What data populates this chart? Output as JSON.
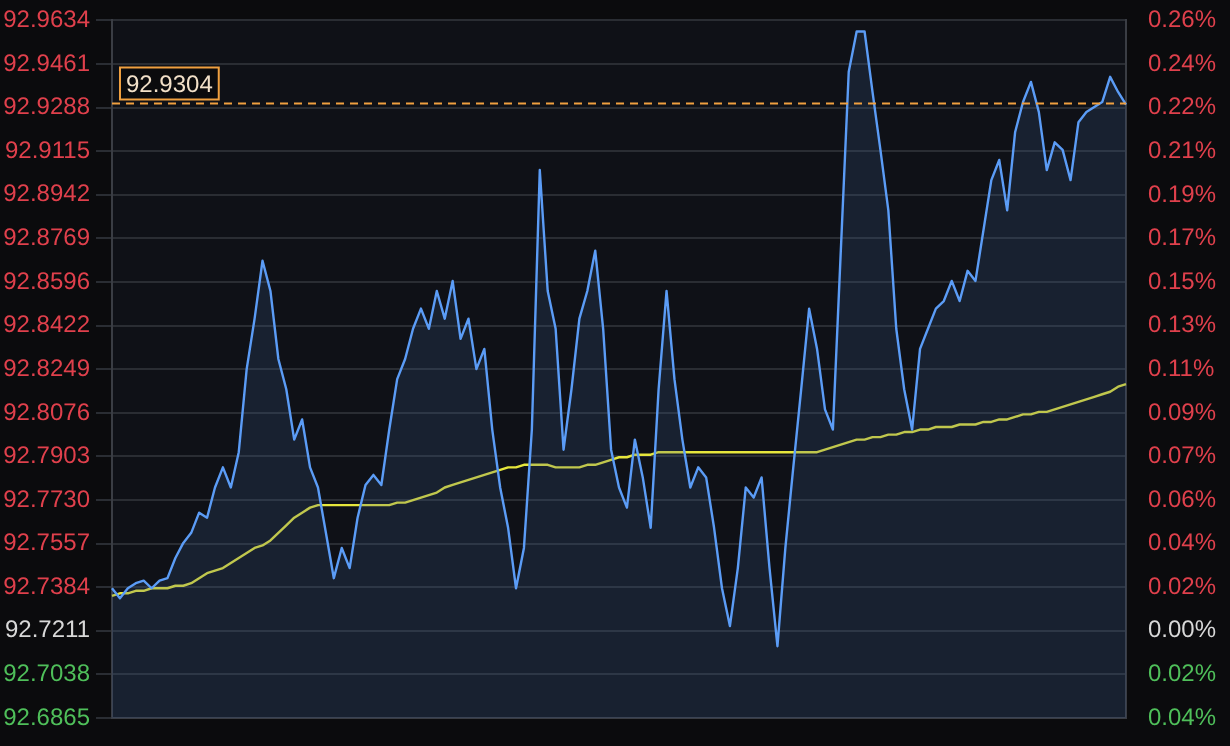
{
  "chart_data": {
    "type": "area",
    "categories": [
      null,
      null,
      null,
      null,
      null,
      null,
      null,
      null,
      null,
      null,
      null,
      null,
      null,
      null,
      null,
      null,
      null,
      null,
      null,
      null,
      null,
      null,
      null,
      null,
      null,
      null,
      null,
      null,
      null,
      null,
      null,
      null,
      null,
      null,
      null,
      null,
      null,
      null,
      null,
      null,
      null,
      null,
      null,
      null,
      null,
      null,
      null,
      null,
      null,
      null,
      null,
      null,
      null,
      null,
      null,
      null,
      null,
      null,
      null,
      null,
      null,
      null,
      null,
      null,
      null,
      null,
      null,
      null,
      null,
      null,
      null,
      null,
      null,
      null,
      null,
      null,
      null,
      null,
      null,
      null,
      null,
      null,
      null,
      null,
      null,
      null,
      null,
      null,
      null,
      null,
      null,
      null,
      null,
      null,
      null,
      null,
      null,
      null,
      null,
      null,
      null,
      null,
      null,
      null,
      null,
      null,
      null,
      null,
      null,
      null,
      null,
      null,
      null,
      null,
      null,
      null,
      null,
      null,
      null,
      null,
      null,
      null,
      null,
      null,
      null,
      null,
      null,
      null,
      null
    ],
    "series": [
      {
        "color": "#5b9cf6",
        "values": [
          92.738,
          92.734,
          92.738,
          92.74,
          92.741,
          92.738,
          92.741,
          92.742,
          92.75,
          92.756,
          92.76,
          92.768,
          92.766,
          92.778,
          92.786,
          92.778,
          92.792,
          92.825,
          92.845,
          92.868,
          92.856,
          92.829,
          92.817,
          92.797,
          92.805,
          92.786,
          92.778,
          92.76,
          92.742,
          92.754,
          92.746,
          92.766,
          92.779,
          92.783,
          92.779,
          92.801,
          92.821,
          92.829,
          92.841,
          92.849,
          92.841,
          92.856,
          92.845,
          92.86,
          92.837,
          92.845,
          92.825,
          92.833,
          92.801,
          92.778,
          92.762,
          92.738,
          92.754,
          92.801,
          92.904,
          92.856,
          92.841,
          92.793,
          92.817,
          92.845,
          92.856,
          92.872,
          92.841,
          92.793,
          92.778,
          92.77,
          92.797,
          92.782,
          92.762,
          92.817,
          92.856,
          92.821,
          92.797,
          92.778,
          92.786,
          92.782,
          92.762,
          92.738,
          92.723,
          92.746,
          92.778,
          92.774,
          92.782,
          92.746,
          92.715,
          92.754,
          92.786,
          92.817,
          92.849,
          92.833,
          92.809,
          92.801,
          92.872,
          92.943,
          92.959,
          92.959,
          92.935,
          92.912,
          92.888,
          92.841,
          92.817,
          92.801,
          92.833,
          92.841,
          92.849,
          92.852,
          92.86,
          92.852,
          92.864,
          92.86,
          92.88,
          92.9,
          92.908,
          92.888,
          92.919,
          92.931,
          92.939,
          92.927,
          92.904,
          92.915,
          92.912,
          92.9,
          92.923,
          92.927,
          92.929,
          92.931,
          92.941,
          92.935,
          92.93
        ]
      },
      {
        "type": "line",
        "color": "#e6e63c",
        "values": [
          92.735,
          92.736,
          92.736,
          92.737,
          92.737,
          92.738,
          92.738,
          92.738,
          92.739,
          92.739,
          92.74,
          92.742,
          92.744,
          92.745,
          92.746,
          92.748,
          92.75,
          92.752,
          92.754,
          92.755,
          92.757,
          92.76,
          92.763,
          92.766,
          92.768,
          92.77,
          92.771,
          92.771,
          92.771,
          92.771,
          92.771,
          92.771,
          92.771,
          92.771,
          92.771,
          92.771,
          92.772,
          92.772,
          92.773,
          92.774,
          92.775,
          92.776,
          92.778,
          92.779,
          92.78,
          92.781,
          92.782,
          92.783,
          92.784,
          92.785,
          92.786,
          92.786,
          92.787,
          92.787,
          92.787,
          92.787,
          92.786,
          92.786,
          92.786,
          92.786,
          92.787,
          92.787,
          92.788,
          92.789,
          92.79,
          92.79,
          92.791,
          92.791,
          92.791,
          92.792,
          92.792,
          92.792,
          92.792,
          92.792,
          92.792,
          92.792,
          92.792,
          92.792,
          92.792,
          92.792,
          92.792,
          92.792,
          92.792,
          92.792,
          92.792,
          92.792,
          92.792,
          92.792,
          92.792,
          92.792,
          92.793,
          92.794,
          92.795,
          92.796,
          92.797,
          92.797,
          92.798,
          92.798,
          92.799,
          92.799,
          92.8,
          92.8,
          92.801,
          92.801,
          92.802,
          92.802,
          92.802,
          92.803,
          92.803,
          92.803,
          92.804,
          92.804,
          92.805,
          92.805,
          92.806,
          92.807,
          92.807,
          92.808,
          92.808,
          92.809,
          92.81,
          92.811,
          92.812,
          92.813,
          92.814,
          92.815,
          92.816,
          92.818,
          92.819
        ]
      }
    ],
    "ylim": [
      92.6865,
      92.9634
    ],
    "yticks": [
      92.6865,
      92.7038,
      92.7211,
      92.7384,
      92.7557,
      {
        "value": 92.773,
        "label": "92.7730"
      },
      92.7903,
      92.8076,
      92.8249,
      92.8422,
      92.8596,
      92.8769,
      92.8942,
      92.9115,
      92.9288,
      92.9461,
      92.9634
    ],
    "y2lim": [
      -0.0373,
      0.2613
    ],
    "y2ticks": [
      {
        "value": -0.0373,
        "label": "0.04%"
      },
      {
        "value": -0.0187,
        "label": "0.02%"
      },
      {
        "value": 0,
        "label": "0.00%"
      },
      {
        "value": 0.0187,
        "label": "0.02%"
      },
      {
        "value": 0.0373,
        "label": "0.04%"
      },
      {
        "value": 0.056,
        "label": "0.06%"
      },
      {
        "value": 0.0746,
        "label": "0.07%"
      },
      {
        "value": 0.0933,
        "label": "0.09%"
      },
      {
        "value": 0.1119,
        "label": "0.11%"
      },
      {
        "value": 0.1306,
        "label": "0.13%"
      },
      {
        "value": 0.1492,
        "label": "0.15%"
      },
      {
        "value": 0.1679,
        "label": "0.17%"
      },
      {
        "value": 0.1866,
        "label": "0.19%"
      },
      {
        "value": 0.2052,
        "label": "0.21%"
      },
      {
        "value": 0.2239,
        "label": "0.22%"
      },
      {
        "value": 0.2425,
        "label": "0.24%"
      },
      {
        "value": 0.2612,
        "label": "0.26%"
      }
    ],
    "ref_lines": [
      {
        "axis": "y",
        "value": 92.9304,
        "label": "92.9304",
        "color": "#f0a040",
        "line_style": "dashed"
      }
    ],
    "grid": "y",
    "legend": false,
    "marker": "none",
    "tick_labels": "y"
  }
}
